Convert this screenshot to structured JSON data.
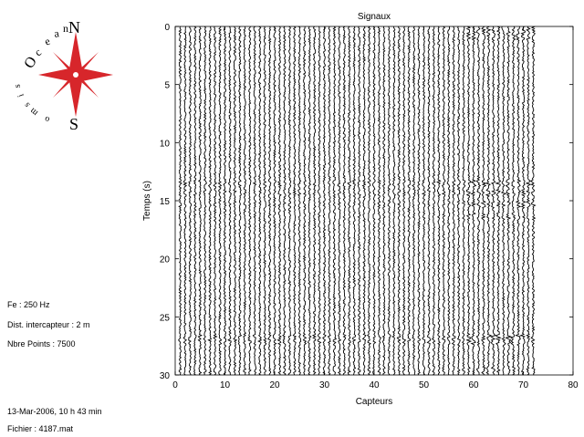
{
  "logo": {
    "letters": [
      "O",
      "c",
      "e",
      "a",
      "n"
    ],
    "side_letters": [
      "s",
      "i",
      "s",
      "m",
      "o"
    ],
    "north": "N",
    "south": "S",
    "star_color": "#d7262b"
  },
  "info": {
    "sampling_rate": "Fe : 250 Hz",
    "sensor_spacing": "Dist. intercapteur : 2 m",
    "points": "Nbre Points : 7500",
    "date": "13-Mar-2006,  10 h 43 min",
    "file": "Fichier : 4187.mat"
  },
  "chart_data": {
    "type": "line",
    "title": "Signaux",
    "xlabel": "Capteurs",
    "ylabel": "Temps (s)",
    "xlim": [
      0,
      80
    ],
    "ylim": [
      0,
      30
    ],
    "y_reversed": true,
    "xticks": [
      0,
      10,
      20,
      30,
      40,
      50,
      60,
      70,
      80
    ],
    "yticks": [
      0,
      5,
      10,
      15,
      20,
      25,
      30
    ],
    "sensor_count": 72,
    "sensor_spacing": 1,
    "time_range_s": [
      0,
      30
    ],
    "trace_color": "#000000",
    "grid": false
  }
}
